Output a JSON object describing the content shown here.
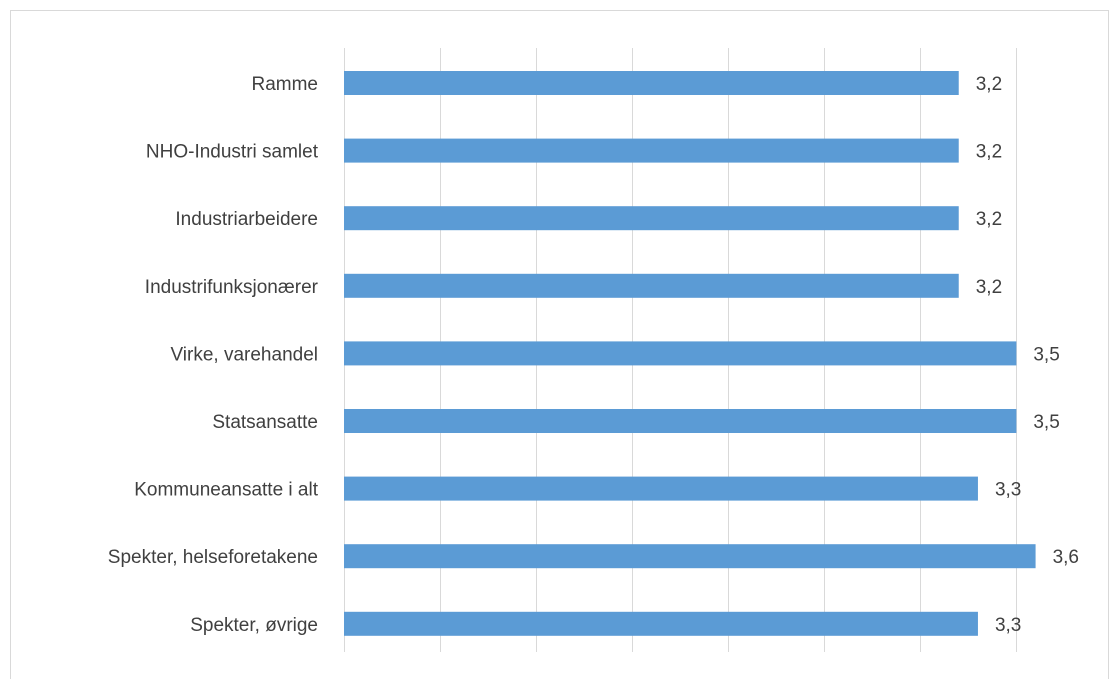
{
  "chart_data": {
    "type": "bar",
    "orientation": "horizontal",
    "categories": [
      "Ramme",
      "NHO-Industri samlet",
      "Industriarbeidere",
      "Industrifunksjonærer",
      "Virke, varehandel",
      "Statsansatte",
      "Kommuneansatte i alt",
      "Spekter, helseforetakene",
      "Spekter, øvrige"
    ],
    "values": [
      3.2,
      3.2,
      3.2,
      3.2,
      3.5,
      3.5,
      3.3,
      3.6,
      3.3
    ],
    "value_labels": [
      "3,2",
      "3,2",
      "3,2",
      "3,2",
      "3,5",
      "3,5",
      "3,3",
      "3,6",
      "3,3"
    ],
    "xlim": [
      0,
      3.8
    ],
    "grid": "vertical",
    "legend": "none",
    "bar_color": "#5b9bd5",
    "gridline_color": "#d9d9d9",
    "text_color": "#404040"
  }
}
